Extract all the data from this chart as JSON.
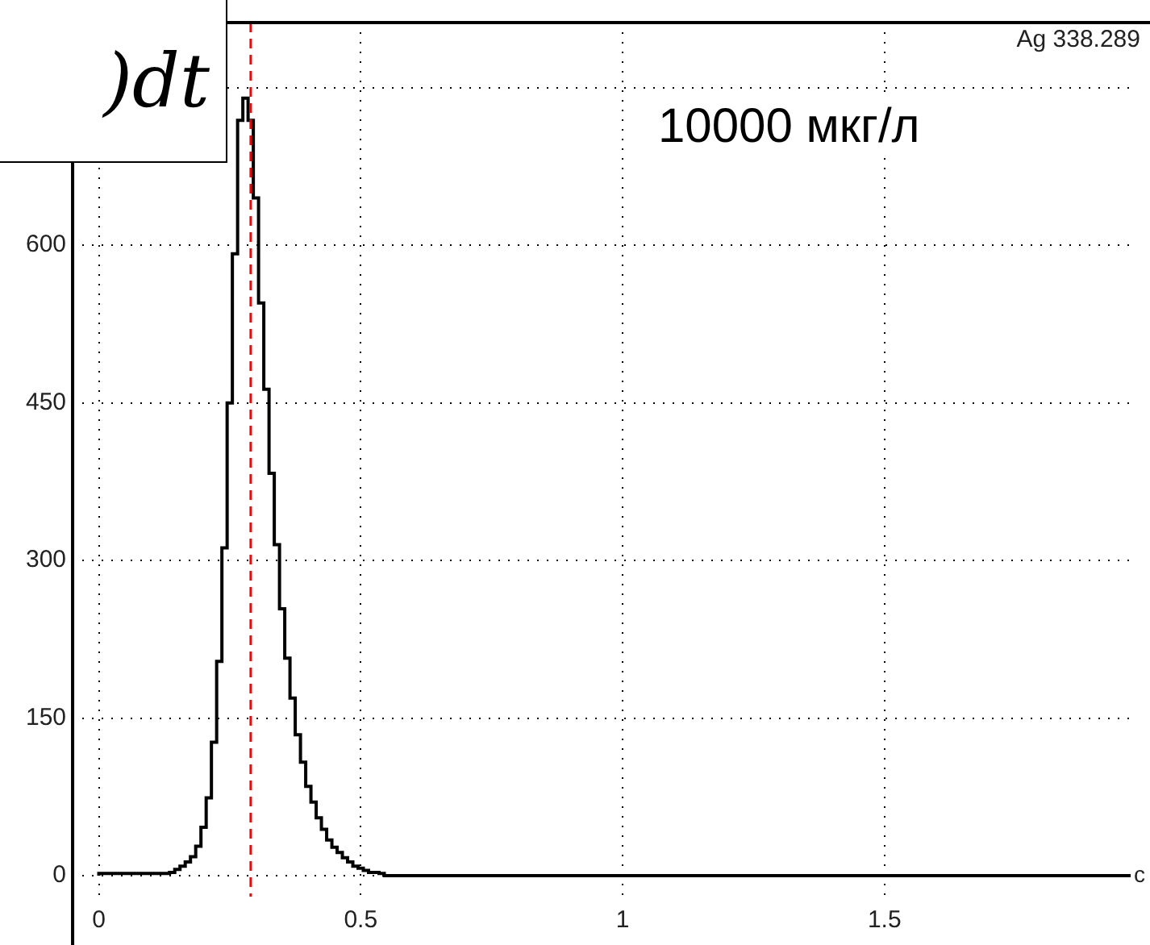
{
  "chart_data": {
    "type": "step",
    "x": [
      0,
      0.135,
      0.145,
      0.155,
      0.165,
      0.175,
      0.185,
      0.195,
      0.205,
      0.215,
      0.225,
      0.235,
      0.245,
      0.255,
      0.265,
      0.275,
      0.285,
      0.295,
      0.305,
      0.315,
      0.325,
      0.335,
      0.345,
      0.355,
      0.365,
      0.375,
      0.385,
      0.395,
      0.405,
      0.415,
      0.425,
      0.435,
      0.445,
      0.455,
      0.465,
      0.475,
      0.485,
      0.495,
      0.505,
      0.515,
      0.525,
      0.535,
      0.545,
      0.605,
      1.97
    ],
    "values": [
      0,
      2,
      3,
      6,
      9,
      13,
      18,
      28,
      46,
      74,
      127,
      204,
      312,
      450,
      592,
      719,
      740,
      719,
      645,
      545,
      463,
      383,
      315,
      254,
      207,
      169,
      134,
      108,
      85,
      70,
      55,
      44,
      34,
      27,
      22,
      17,
      13,
      9,
      7,
      5,
      3,
      3,
      2,
      0,
      0
    ],
    "color": "#000000",
    "xlabel": "с",
    "xlim": [
      -0.05,
      1.97
    ],
    "xticks": [
      0,
      0.5,
      1,
      1.5
    ],
    "ylim": [
      -20,
      812
    ],
    "yticks": [
      0,
      150,
      300,
      450,
      600,
      {
        "value": 750,
        "label": null
      }
    ],
    "grid": true,
    "ref_lines": [
      {
        "axis": "x",
        "value": 0.29,
        "color": "#ff0000",
        "line_style": "dashed"
      }
    ],
    "annotations": [
      ")dt",
      "Ag 338.289",
      "10000 мкг/л"
    ]
  }
}
